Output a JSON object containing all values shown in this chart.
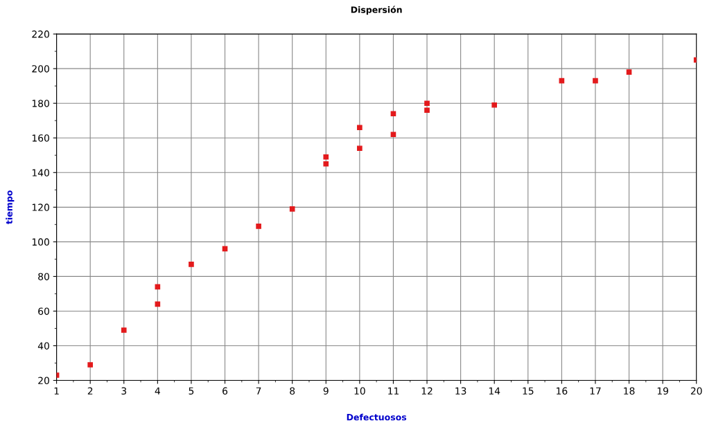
{
  "chart_data": {
    "type": "scatter",
    "title": "Dispersión",
    "xlabel": "Defectuosos",
    "ylabel": "tiempo",
    "x": [
      1,
      2,
      3,
      4,
      4,
      5,
      6,
      7,
      8,
      9,
      9,
      10,
      10,
      11,
      11,
      12,
      12,
      14,
      16,
      17,
      18,
      20
    ],
    "series": [
      {
        "color": "#e31a1c",
        "values": [
          23,
          29,
          49,
          64,
          74,
          87,
          96,
          109,
          119,
          145,
          149,
          154,
          166,
          162,
          174,
          176,
          180,
          179,
          193,
          193,
          198,
          205
        ]
      }
    ],
    "xlim": [
      1,
      20
    ],
    "xticks": [
      1,
      2,
      3,
      4,
      5,
      6,
      7,
      8,
      9,
      10,
      11,
      12,
      13,
      14,
      15,
      16,
      17,
      18,
      19,
      20
    ],
    "ylim": [
      20,
      220
    ],
    "yticks": [
      20,
      40,
      60,
      80,
      100,
      120,
      140,
      160,
      180,
      200,
      220
    ],
    "grid": true,
    "marker": "square",
    "legend": false
  }
}
